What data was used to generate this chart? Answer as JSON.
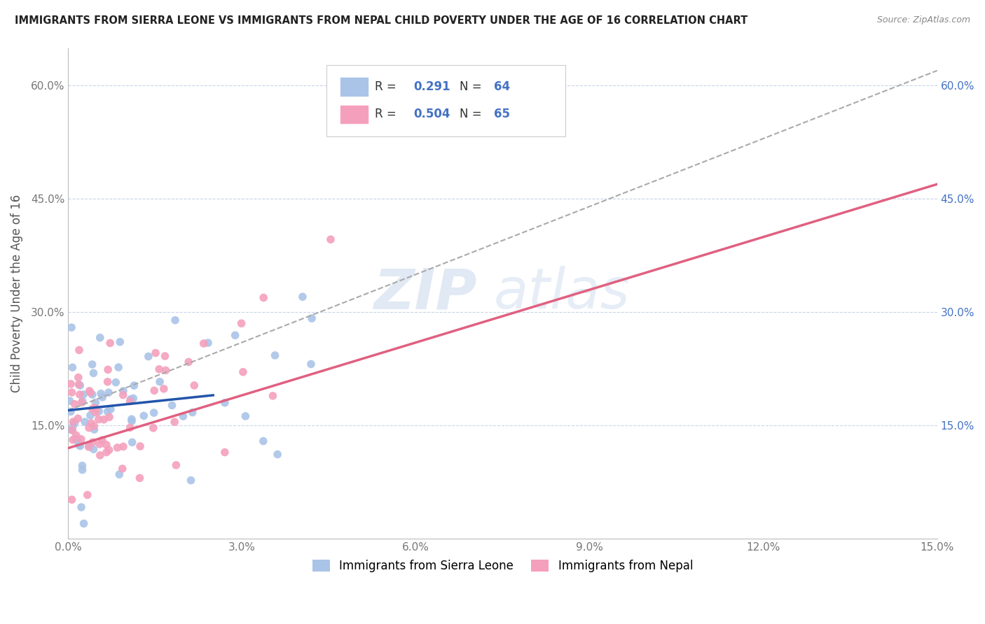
{
  "title": "IMMIGRANTS FROM SIERRA LEONE VS IMMIGRANTS FROM NEPAL CHILD POVERTY UNDER THE AGE OF 16 CORRELATION CHART",
  "source": "Source: ZipAtlas.com",
  "ylabel": "Child Poverty Under the Age of 16",
  "xlim": [
    0,
    0.15
  ],
  "ylim": [
    0,
    0.65
  ],
  "x_ticks": [
    0.0,
    0.03,
    0.06,
    0.09,
    0.12,
    0.15
  ],
  "x_tick_labels": [
    "0.0%",
    "3.0%",
    "6.0%",
    "9.0%",
    "12.0%",
    "15.0%"
  ],
  "y_ticks": [
    0.0,
    0.15,
    0.3,
    0.45,
    0.6
  ],
  "y_tick_labels": [
    "",
    "15.0%",
    "30.0%",
    "45.0%",
    "60.0%"
  ],
  "series1_label": "Immigrants from Sierra Leone",
  "series1_R": 0.291,
  "series1_N": 64,
  "series1_color": "#aac4e8",
  "series1_line_color": "#2255aa",
  "series2_label": "Immigrants from Nepal",
  "series2_R": 0.504,
  "series2_N": 65,
  "series2_color": "#f4a0bc",
  "series2_line_color": "#e06080",
  "watermark_zip": "ZIP",
  "watermark_atlas": "atlas",
  "background_color": "#ffffff",
  "grid_color": "#c8d4e8",
  "right_tick_color": "#4472c4",
  "title_color": "#222222",
  "source_color": "#888888",
  "ylabel_color": "#555555"
}
